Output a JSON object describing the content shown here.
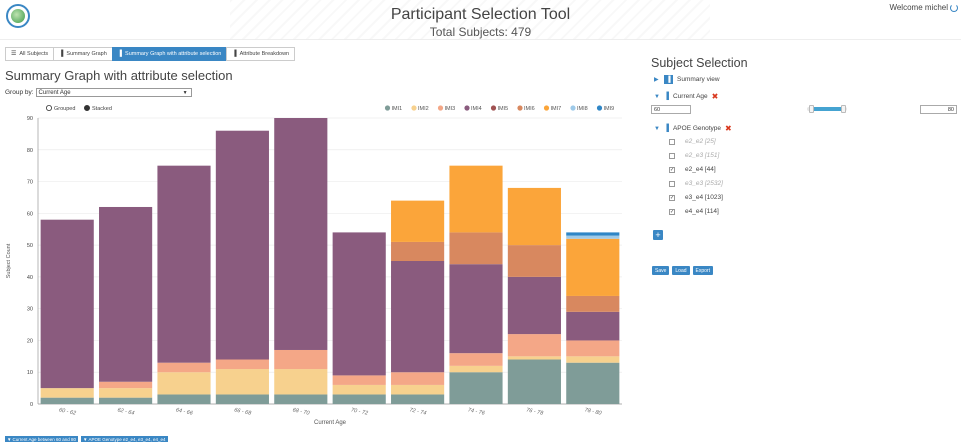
{
  "header": {
    "title": "Participant Selection Tool",
    "total": "Total Subjects: 479",
    "welcome": "Welcome michel"
  },
  "tabs": [
    {
      "label": "All Subjects",
      "icon": "list-icon"
    },
    {
      "label": "Summary Graph",
      "icon": "bar-chart-icon"
    },
    {
      "label": "Summary Graph with attribute selection",
      "icon": "bar-chart-icon",
      "active": true
    },
    {
      "label": "Attribute Breakdown",
      "icon": "bar-chart-icon"
    }
  ],
  "main": {
    "title": "Summary Graph with attribute selection",
    "group_by_label": "Group by:",
    "group_by_value": "Current Age"
  },
  "chart_data": {
    "type": "bar",
    "stacked": true,
    "mode_options": [
      "Grouped",
      "Stacked"
    ],
    "selected_mode": "Stacked",
    "xlabel": "Current Age",
    "ylabel": "Subject Count",
    "ylim": [
      0,
      90
    ],
    "yticks": [
      0,
      10,
      20,
      30,
      40,
      50,
      60,
      70,
      80,
      90
    ],
    "grid": true,
    "legend_position": "top-right",
    "categories": [
      "60 - 62",
      "62 - 64",
      "64 - 66",
      "66 - 68",
      "68 - 70",
      "70 - 72",
      "72 - 74",
      "74 - 76",
      "76 - 78",
      "78 - 80"
    ],
    "series": [
      {
        "name": "IMI1",
        "color": "#7f9c98",
        "values": [
          2,
          2,
          3,
          3,
          3,
          3,
          3,
          10,
          14,
          13
        ]
      },
      {
        "name": "IMI2",
        "color": "#f7d18e",
        "values": [
          3,
          3,
          7,
          8,
          8,
          3,
          3,
          2,
          1,
          2
        ]
      },
      {
        "name": "IMI3",
        "color": "#f4a787",
        "values": [
          0,
          2,
          3,
          3,
          6,
          3,
          4,
          4,
          7,
          5
        ]
      },
      {
        "name": "IMI4",
        "color": "#8a5b7e",
        "values": [
          53,
          55,
          62,
          72,
          73,
          45,
          35,
          28,
          18,
          9
        ]
      },
      {
        "name": "IMI5",
        "color": "#a05252",
        "values": [
          0,
          0,
          0,
          0,
          0,
          0,
          0,
          0,
          0,
          0
        ]
      },
      {
        "name": "IMI6",
        "color": "#d8885f",
        "values": [
          0,
          0,
          0,
          0,
          0,
          0,
          6,
          10,
          10,
          5
        ]
      },
      {
        "name": "IMI7",
        "color": "#fba53a",
        "values": [
          0,
          0,
          0,
          0,
          0,
          0,
          13,
          21,
          18,
          18
        ]
      },
      {
        "name": "IMI8",
        "color": "#9ecae9",
        "values": [
          0,
          0,
          0,
          0,
          0,
          0,
          0,
          0,
          0,
          1
        ]
      },
      {
        "name": "IMI9",
        "color": "#2f86c6",
        "values": [
          0,
          0,
          0,
          0,
          0,
          0,
          0,
          0,
          0,
          1
        ]
      }
    ]
  },
  "filters": [
    "Current Age between 60 and 80",
    "APOE Genotype e2_e4, e3_e4, e4_e4"
  ],
  "selection": {
    "title": "Subject Selection",
    "summary_view": "Summary view",
    "age": {
      "label": "Current Age",
      "min": "60",
      "max": "80",
      "slider_low": 0.1,
      "slider_high": 0.9
    },
    "genotype": {
      "label": "APOE Genotype",
      "options": [
        {
          "label": "e2_e2 [25]",
          "checked": false,
          "enabled": false
        },
        {
          "label": "e2_e3 [151]",
          "checked": false,
          "enabled": false
        },
        {
          "label": "e2_e4 [44]",
          "checked": true,
          "enabled": true
        },
        {
          "label": "e3_e3 [2532]",
          "checked": false,
          "enabled": false
        },
        {
          "label": "e3_e4 [1023]",
          "checked": true,
          "enabled": true
        },
        {
          "label": "e4_e4 [114]",
          "checked": true,
          "enabled": true
        }
      ]
    },
    "buttons": {
      "save": "Save",
      "load": "Load",
      "export": "Export"
    }
  }
}
